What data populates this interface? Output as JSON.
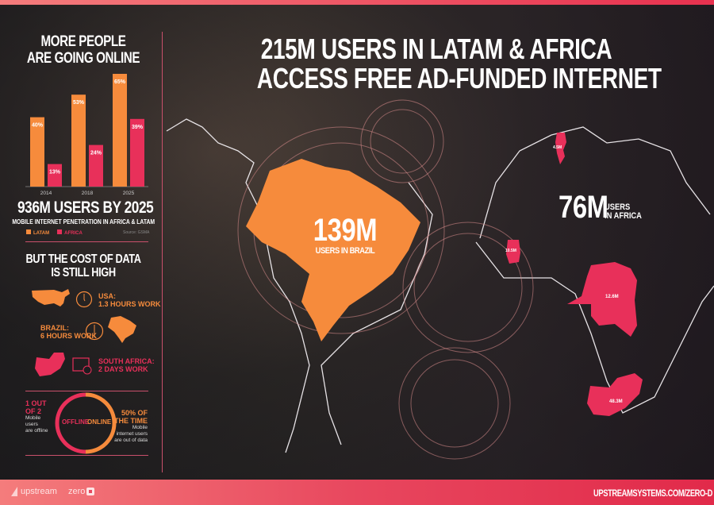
{
  "title": {
    "line1": "215M USERS IN LATAM & AFRICA",
    "line2": "ACCESS FREE AD-FUNDED INTERNET"
  },
  "left": {
    "heading1": "MORE PEOPLE",
    "heading2": "ARE GOING ONLINE",
    "total": "936M USERS BY 2025",
    "subtitle": "MOBILE INTERNET PENETRATION IN AFRICA & LATAM",
    "source": "Source: GSMA",
    "cost_heading1": "BUT THE COST OF DATA",
    "cost_heading2": "IS STILL HIGH",
    "cost": [
      {
        "country": "USA:",
        "value": "1.3 HOURS WORK",
        "icon": "clock-icon"
      },
      {
        "country": "BRAZIL:",
        "value": "6 HOURS WORK",
        "icon": "clock-icon"
      },
      {
        "country": "SOUTH AFRICA:",
        "value": "2 DAYS WORK",
        "icon": "calendar-icon"
      }
    ],
    "offline": {
      "stat1": "1 OUT",
      "stat2": "OF 2",
      "desc1": "Mobile",
      "desc2": "users",
      "desc3": "are offline",
      "label": "OFFLINE"
    },
    "online": {
      "stat1": "50% OF",
      "stat2": "THE TIME",
      "desc1": "Mobile",
      "desc2": "internet users",
      "desc3": "are out of data",
      "label": "ONLINE"
    }
  },
  "chart_data": {
    "type": "bar",
    "categories": [
      "2014",
      "2018",
      "2025"
    ],
    "series": [
      {
        "name": "LATAM",
        "values": [
          40,
          53,
          65
        ],
        "color": "#f68b3c"
      },
      {
        "name": "AFRICA",
        "values": [
          13,
          24,
          39
        ],
        "color": "#e8305a"
      }
    ],
    "ylim": [
      0,
      70
    ],
    "legend": "bottom-left",
    "grid": false,
    "value_suffix": "%"
  },
  "brazil": {
    "value": "139M",
    "label": "USERS IN BRAZIL"
  },
  "africa": {
    "value": "76M",
    "label1": "USERS",
    "label2": "IN AFRICA",
    "countries": [
      {
        "value": "4.5M"
      },
      {
        "value": "10.5M"
      },
      {
        "value": "12.6M"
      },
      {
        "value": "48.3M"
      }
    ]
  },
  "footer": {
    "brand1": "upstream",
    "brand2": "zero",
    "url": "UPSTREAMSYSTEMS.COM/ZERO-D"
  },
  "colors": {
    "orange": "#f68b3c",
    "pink": "#e8305a",
    "footer": "#e8475e"
  }
}
